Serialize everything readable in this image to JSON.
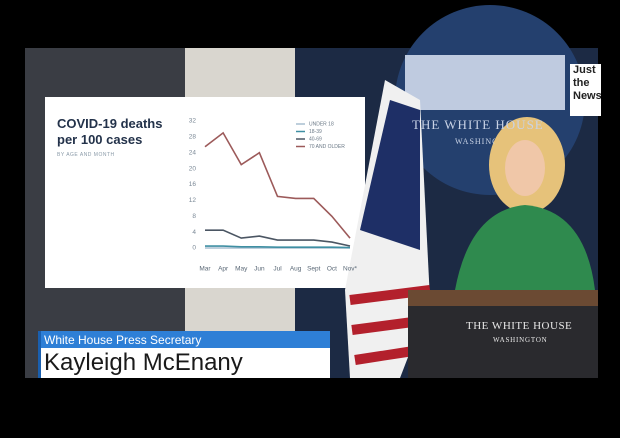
{
  "chart_data": {
    "type": "line",
    "title": "COVID-19 deaths per 100 cases",
    "subtitle": "BY AGE AND MONTH",
    "categories": [
      "Mar",
      "Apr",
      "May",
      "Jun",
      "Jul",
      "Aug",
      "Sept",
      "Oct",
      "Nov*"
    ],
    "series": [
      {
        "name": "UNDER 18",
        "color": "#a9bfd0",
        "values": [
          0,
          0,
          0,
          0,
          0,
          0,
          0,
          0,
          0
        ]
      },
      {
        "name": "18-39",
        "color": "#3f8fa3",
        "values": [
          0.5,
          0.5,
          0.3,
          0.3,
          0.2,
          0.2,
          0.2,
          0.2,
          0.1
        ]
      },
      {
        "name": "40-69",
        "color": "#4b5663",
        "values": [
          4.5,
          4.5,
          2.5,
          3,
          2,
          2,
          2,
          1.5,
          0.5
        ]
      },
      {
        "name": "70 AND OLDER",
        "color": "#9c5a5a",
        "values": [
          25.5,
          29,
          21,
          24,
          13,
          12.5,
          12.5,
          8,
          2.5
        ]
      }
    ],
    "ylim": [
      0,
      32
    ],
    "yticks": [
      0,
      4,
      8,
      12,
      16,
      20,
      24,
      28,
      32
    ]
  },
  "lower_third": {
    "role": "White House Press Secretary",
    "name": "Kayleigh McEnany"
  },
  "wall_seal": {
    "title": "THE WHITE HOUSE",
    "subtitle": "WASHINGTON"
  },
  "podium": {
    "title": "THE WHITE HOUSE",
    "subtitle": "WASHINGTON"
  },
  "logo": "Just the News"
}
